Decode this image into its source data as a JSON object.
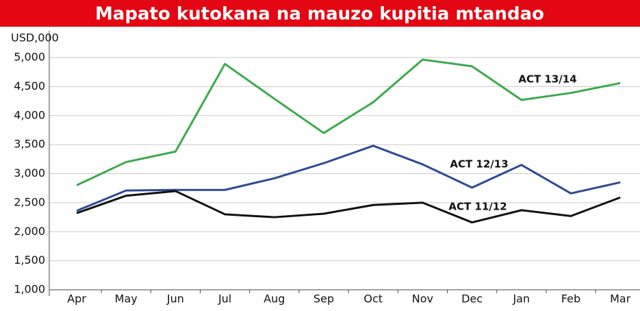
{
  "chart_data": {
    "type": "line",
    "title": "Mapato kutokana na mauzo kupitia mtandao",
    "y_axis_label": "USD,000",
    "categories": [
      "Apr",
      "May",
      "Jun",
      "Jul",
      "Aug",
      "Sep",
      "Oct",
      "Nov",
      "Dec",
      "Jan",
      "Feb",
      "Mar"
    ],
    "series": [
      {
        "name": "ACT 13/14",
        "color": "#3aaa4a",
        "values": [
          2800,
          3200,
          3380,
          4890,
          4290,
          3700,
          4230,
          4965,
          4850,
          4270,
          4390,
          4560
        ]
      },
      {
        "name": "ACT 12/13",
        "color": "#2e4a94",
        "values": [
          2360,
          2710,
          2720,
          2720,
          2920,
          3180,
          3480,
          3160,
          2760,
          3150,
          2660,
          2850
        ]
      },
      {
        "name": "ACT 11/12",
        "color": "#111111",
        "values": [
          2320,
          2620,
          2700,
          2300,
          2250,
          2310,
          2460,
          2500,
          2160,
          2370,
          2270,
          2590
        ]
      }
    ],
    "ylim": [
      1000,
      5000
    ],
    "yticks": [
      {
        "value": 1000,
        "label": "1,000"
      },
      {
        "value": 1500,
        "label": "1,500"
      },
      {
        "value": 2000,
        "label": "2,000"
      },
      {
        "value": 2500,
        "label": "2,500"
      },
      {
        "value": 3000,
        "label": "3,000"
      },
      {
        "value": 3500,
        "label": "3,500"
      },
      {
        "value": 4000,
        "label": "4,000"
      },
      {
        "value": 4500,
        "label": "4,500"
      },
      {
        "value": 5000,
        "label": "5,000"
      }
    ],
    "grid": true
  }
}
